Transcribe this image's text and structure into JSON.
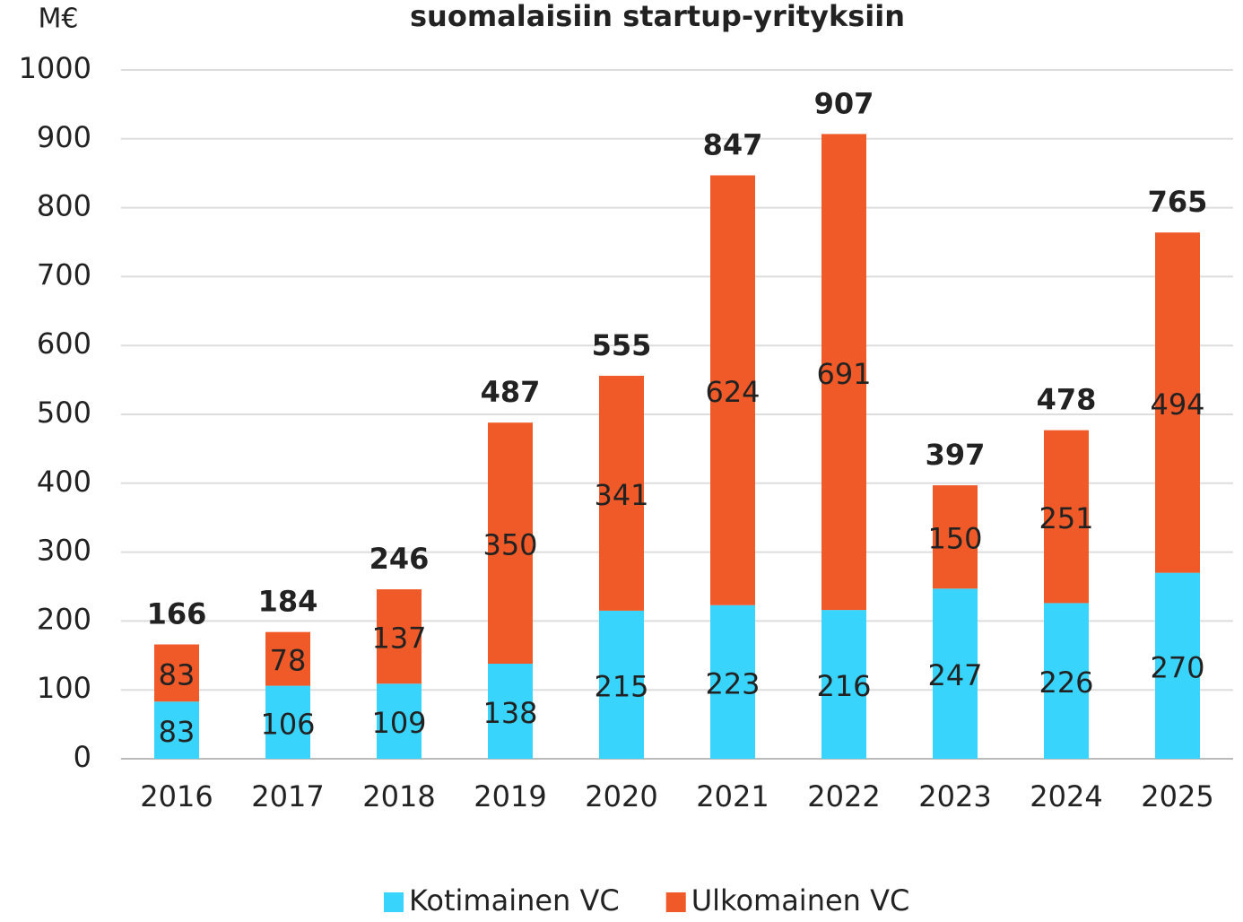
{
  "chart_data": {
    "type": "stacked_bar",
    "title": "suomalaisiin startup-yrityksiin",
    "y_label": "M€",
    "categories": [
      "2016",
      "2017",
      "2018",
      "2019",
      "2020",
      "2021",
      "2022",
      "2023",
      "2024",
      "2025"
    ],
    "series": [
      {
        "name": "Kotimainen VC",
        "color": "#38d4fc",
        "values": [
          83,
          106,
          109,
          138,
          215,
          223,
          216,
          247,
          226,
          270
        ]
      },
      {
        "name": "Ulkomainen VC",
        "color": "#f05a28",
        "values": [
          83,
          78,
          137,
          350,
          341,
          624,
          691,
          150,
          251,
          494
        ]
      }
    ],
    "totals": [
      166,
      184,
      246,
      487,
      555,
      847,
      907,
      397,
      478,
      765
    ],
    "ylim": [
      0,
      1000
    ],
    "yticks": [
      0,
      100,
      200,
      300,
      400,
      500,
      600,
      700,
      800,
      900,
      1000
    ],
    "grid": true,
    "legend": "bottom"
  }
}
